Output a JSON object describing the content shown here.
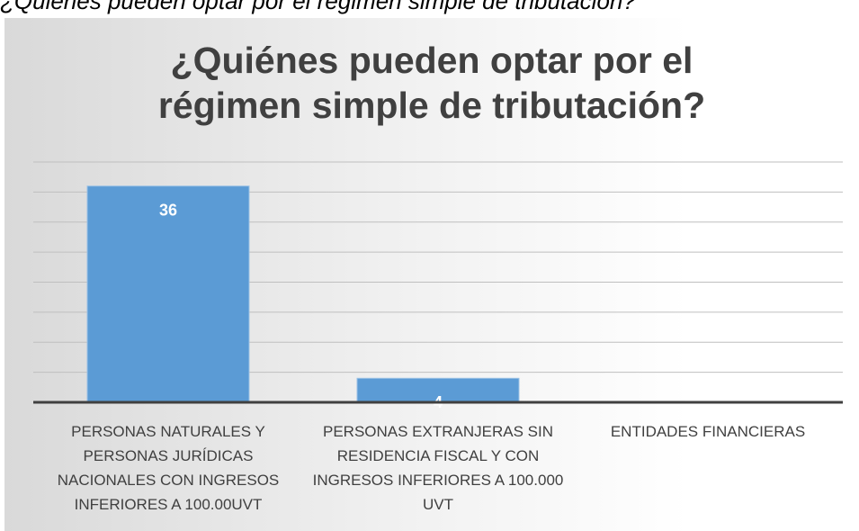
{
  "caption": "¿Quiénes pueden optar por el régimen simple de tributación?",
  "chart_data": {
    "type": "bar",
    "title": "¿Quiénes pueden optar por el régimen simple de tributación?",
    "categories": [
      "PERSONAS NATURALES Y PERSONAS JURÍDICAS NACIONALES CON INGRESOS INFERIORES A 100.00UVT",
      "PERSONAS EXTRANJERAS SIN RESIDENCIA FISCAL Y CON INGRESOS INFERIORES A 100.000 UVT",
      "ENTIDADES FINANCIERAS"
    ],
    "values": [
      36,
      4,
      0
    ],
    "color": "#5b9bd5",
    "ylim": [
      0,
      40
    ],
    "yticks": [
      0,
      5,
      10,
      15,
      20,
      25,
      30,
      35,
      40
    ],
    "grid": true
  }
}
